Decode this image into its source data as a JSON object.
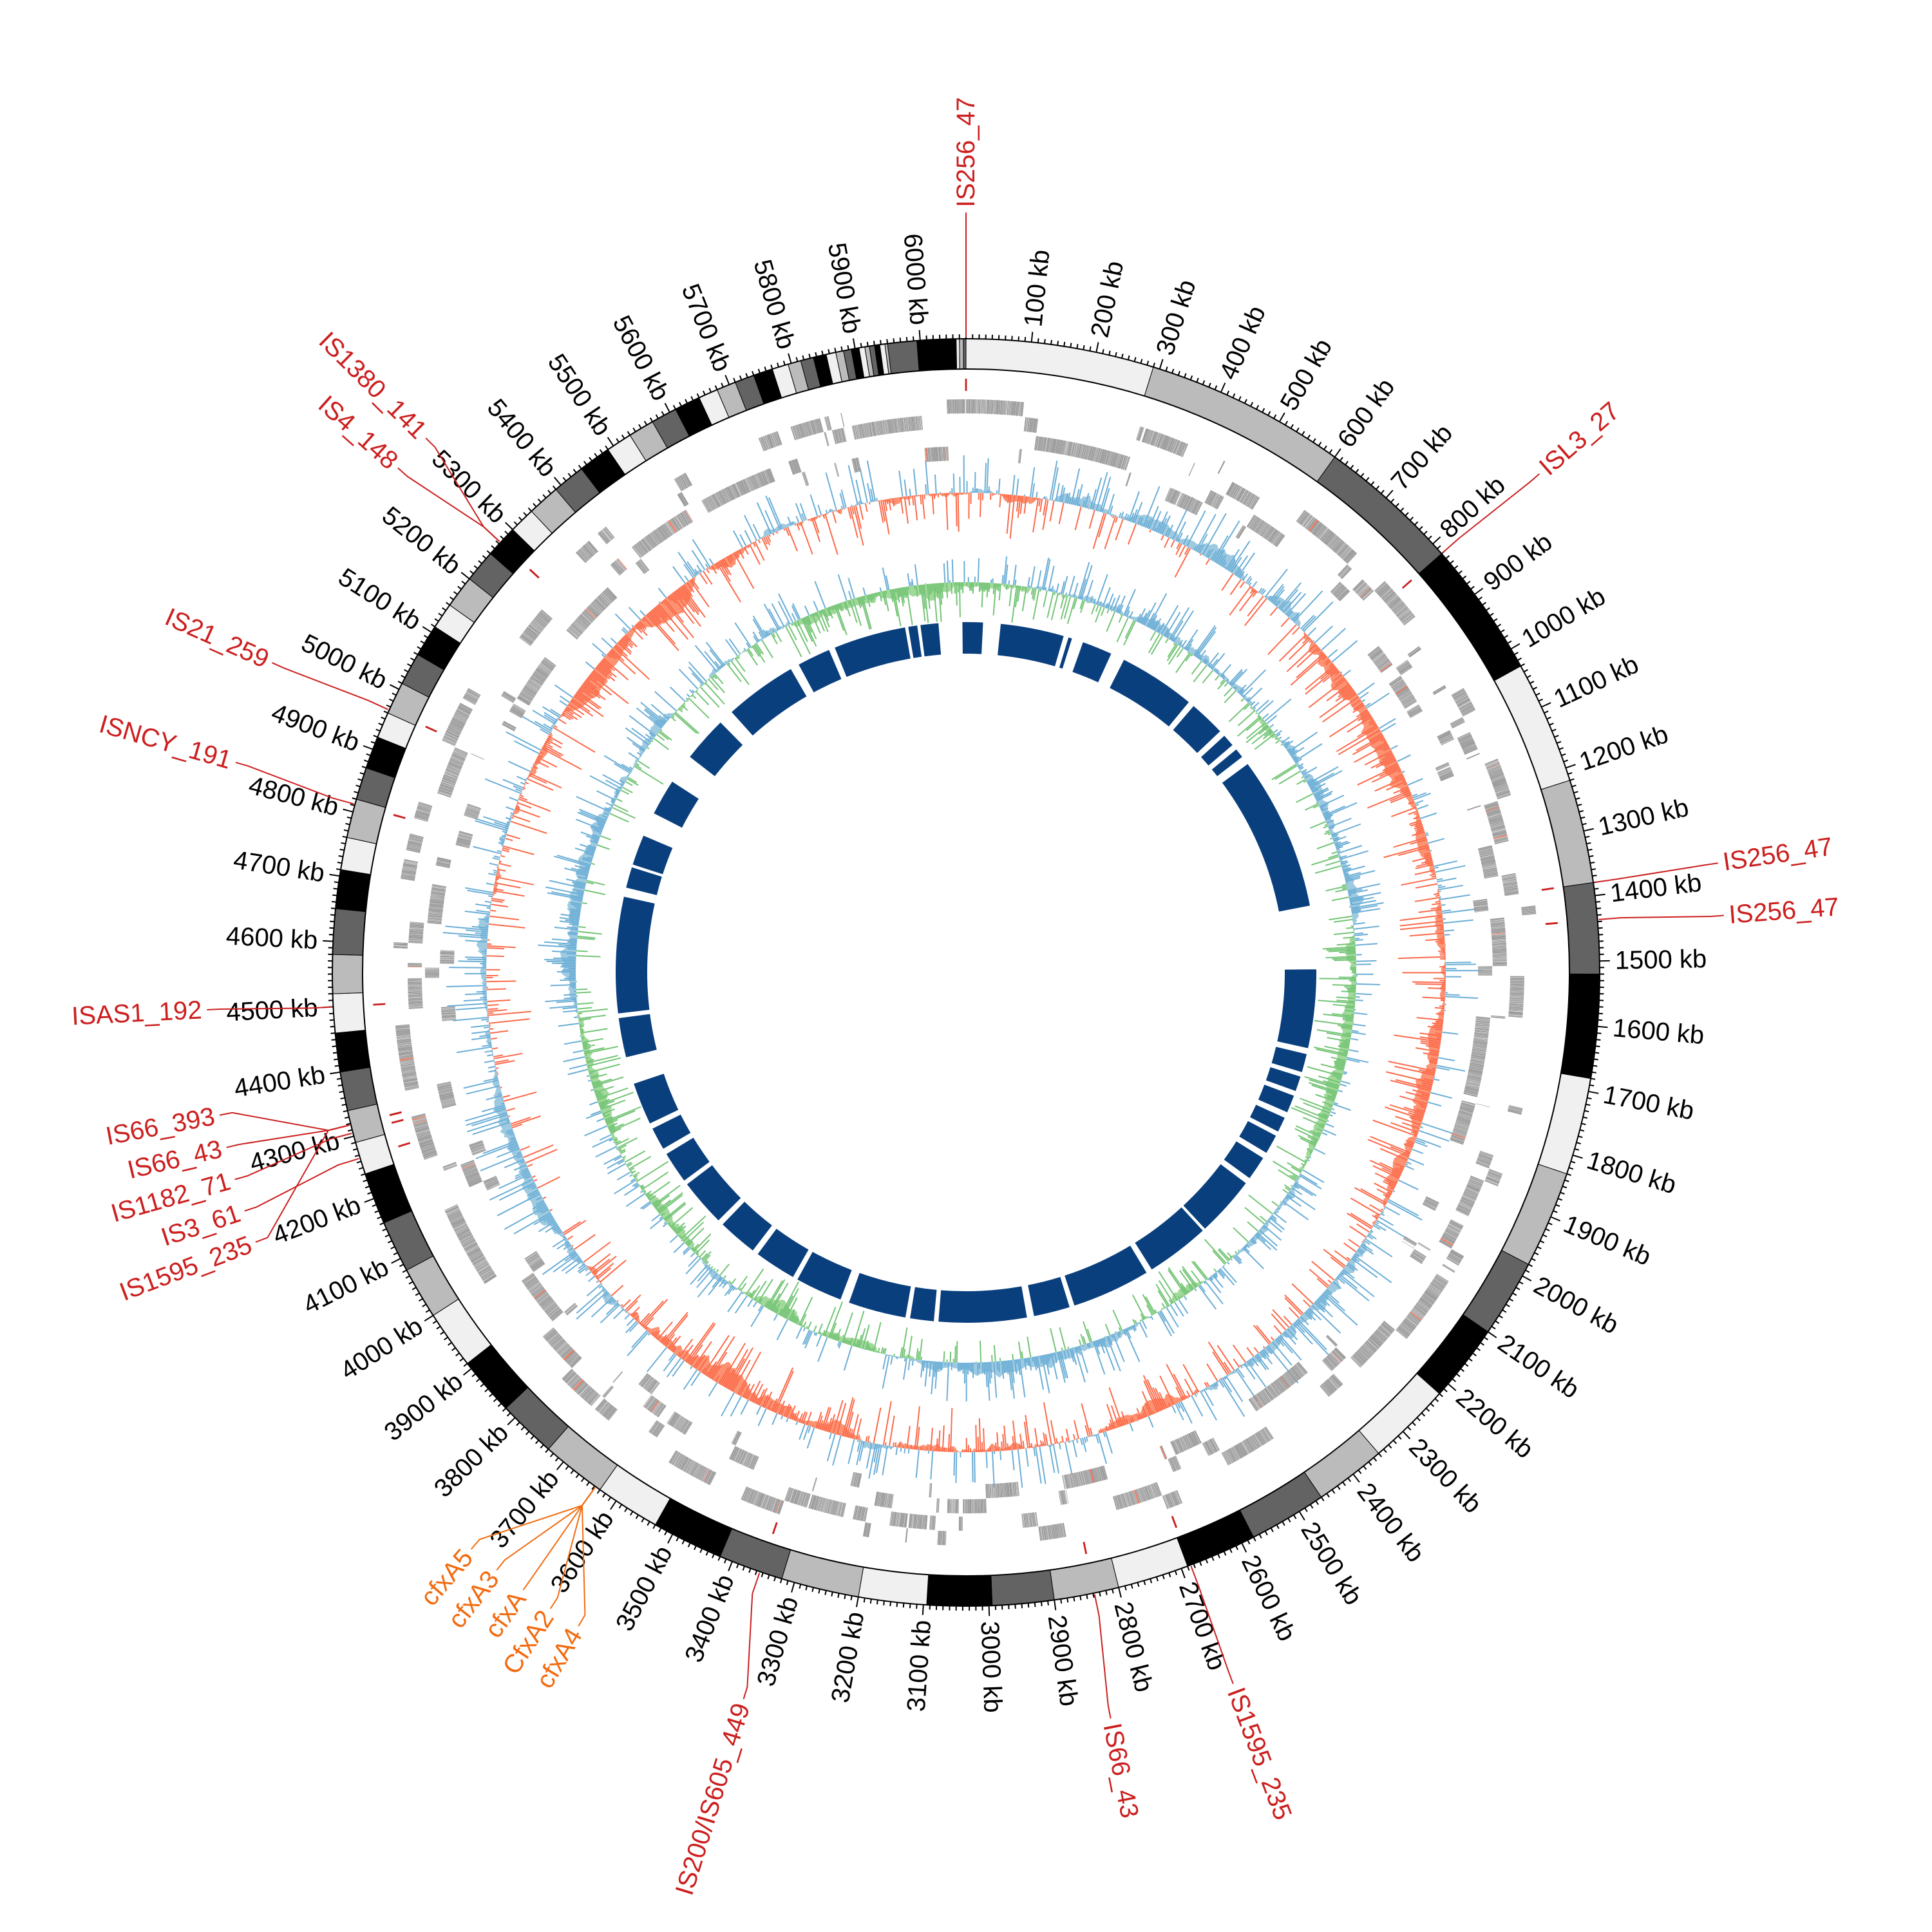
{
  "chart_data": {
    "type": "circular-genome",
    "genome_length_kb": 6070,
    "tick_labels": [
      "100 kb",
      "200 kb",
      "300 kb",
      "400 kb",
      "500 kb",
      "600 kb",
      "700 kb",
      "800 kb",
      "900 kb",
      "1000 kb",
      "1100 kb",
      "1200 kb",
      "1300 kb",
      "1400 kb",
      "1500 kb",
      "1600 kb",
      "1700 kb",
      "1800 kb",
      "1900 kb",
      "2000 kb",
      "2100 kb",
      "2200 kb",
      "2300 kb",
      "2400 kb",
      "2500 kb",
      "2600 kb",
      "2700 kb",
      "2800 kb",
      "2900 kb",
      "3000 kb",
      "3100 kb",
      "3200 kb",
      "3300 kb",
      "3400 kb",
      "3500 kb",
      "3600 kb",
      "3700 kb",
      "3800 kb",
      "3900 kb",
      "4000 kb",
      "4100 kb",
      "4200 kb",
      "4300 kb",
      "4400 kb",
      "4500 kb",
      "4600 kb",
      "4700 kb",
      "4800 kb",
      "4900 kb",
      "5000 kb",
      "5100 kb",
      "5200 kb",
      "5300 kb",
      "5400 kb",
      "5500 kb",
      "5600 kb",
      "5700 kb",
      "5800 kb",
      "5900 kb",
      "6000 kb"
    ],
    "ideogram_band_ends_kb": [
      290,
      600,
      820,
      1030,
      1220,
      1380,
      1520,
      1680,
      1830,
      1980,
      2100,
      2220,
      2350,
      2460,
      2580,
      2690,
      2800,
      2900,
      2995,
      3095,
      3200,
      3320,
      3420,
      3530,
      3630,
      3730,
      3820,
      3910,
      4000,
      4080,
      4160,
      4240,
      4290,
      4340,
      4400,
      4460,
      4520,
      4580,
      4650,
      4710,
      4760,
      4820,
      4870,
      4920,
      4960,
      5010,
      5060,
      5110,
      5150,
      5200,
      5250,
      5300,
      5340,
      5390,
      5440,
      5490,
      5530,
      5570,
      5610,
      5650,
      5680,
      5710,
      5740,
      5770,
      5795,
      5815,
      5835,
      5855,
      5870,
      5882,
      5894,
      5906,
      5915,
      5922,
      5930,
      5938,
      5946,
      5950,
      5995,
      6055,
      6060,
      6066,
      6070
    ],
    "ideogram_colors": [
      "#f0f0f0",
      "#bbbbbb",
      "#636363",
      "#000000"
    ],
    "annotations": [
      {
        "label": "IS256_47",
        "position_kb": 0,
        "kind": "IS"
      },
      {
        "label": "ISL3_27",
        "position_kb": 820,
        "kind": "IS"
      },
      {
        "label": "IS256_47",
        "position_kb": 1380,
        "kind": "IS"
      },
      {
        "label": "IS256_47",
        "position_kb": 1437,
        "kind": "IS"
      },
      {
        "label": "IS1595_235",
        "position_kb": 2685,
        "kind": "IS"
      },
      {
        "label": "IS66_43",
        "position_kb": 2838,
        "kind": "IS"
      },
      {
        "label": "IS200/IS605_449",
        "position_kb": 3355,
        "kind": "IS"
      },
      {
        "label": "cfxA5",
        "position_kb": 3638,
        "kind": "gene"
      },
      {
        "label": "cfxA3",
        "position_kb": 3638,
        "kind": "gene"
      },
      {
        "label": "cfxA",
        "position_kb": 3638,
        "kind": "gene"
      },
      {
        "label": "CfxA2",
        "position_kb": 3638,
        "kind": "gene"
      },
      {
        "label": "cfxA4",
        "position_kb": 3638,
        "kind": "gene"
      },
      {
        "label": "IS66_393",
        "position_kb": 4318,
        "kind": "IS"
      },
      {
        "label": "IS66_43",
        "position_kb": 4318,
        "kind": "IS"
      },
      {
        "label": "IS1182_71",
        "position_kb": 4305,
        "kind": "IS"
      },
      {
        "label": "IS3_61",
        "position_kb": 4265,
        "kind": "IS"
      },
      {
        "label": "IS1595_235",
        "position_kb": 4318,
        "kind": "IS"
      },
      {
        "label": "ISAS1_192",
        "position_kb": 4500,
        "kind": "IS"
      },
      {
        "label": "ISNCY_191",
        "position_kb": 4812,
        "kind": "IS"
      },
      {
        "label": "IS21_259",
        "position_kb": 4965,
        "kind": "IS"
      },
      {
        "label": "IS4_148",
        "position_kb": 5273,
        "kind": "IS"
      },
      {
        "label": "IS1380_141",
        "position_kb": 5273,
        "kind": "IS"
      }
    ],
    "inner_block_gaps_kb": [
      [
        47,
        96
      ],
      [
        273,
        287
      ],
      [
        297,
        329
      ],
      [
        413,
        452
      ],
      [
        666,
        683
      ],
      [
        784,
        801
      ],
      [
        835,
        851
      ],
      [
        877,
        902
      ],
      [
        1332,
        1509
      ],
      [
        1728,
        1745
      ],
      [
        1796,
        1809
      ],
      [
        1851,
        1865
      ],
      [
        1914,
        1931
      ],
      [
        1973,
        1986
      ],
      [
        2040,
        2057
      ],
      [
        2124,
        2141
      ],
      [
        2310,
        2318
      ],
      [
        2495,
        2512
      ],
      [
        2731,
        2745
      ],
      [
        2846,
        2866
      ],
      [
        3111,
        3124
      ],
      [
        3190,
        3203
      ],
      [
        3364,
        3389
      ],
      [
        3520,
        3534
      ],
      [
        3650,
        3667
      ],
      [
        3777,
        3793
      ],
      [
        3925,
        3938
      ],
      [
        4026,
        4043
      ],
      [
        4106,
        4122
      ],
      [
        4240,
        4316
      ],
      [
        4426,
        4439
      ],
      [
        4763,
        4789
      ],
      [
        4847,
        4855
      ],
      [
        4940,
        5008
      ],
      [
        5109,
        5193
      ],
      [
        5320,
        5362
      ],
      [
        5564,
        5589
      ],
      [
        5682,
        5699
      ],
      [
        5901,
        5910
      ],
      [
        5935,
        5944
      ],
      [
        5994,
        6060
      ]
    ],
    "colors": {
      "is_label": "#cc1f1f",
      "gene_label": "#f26b0f",
      "gene_feature": "#9a9a9a",
      "rna_feature": "#fb6a4a",
      "skew_positive": "#6baed6",
      "skew_positive_fill": "#9ecae1",
      "skew_negative": "#fb6a4a",
      "skew_negative_fill": "#fc9272",
      "gc_high": "#6baed6",
      "gc_high_fill": "#9ecae1",
      "gc_low": "#74c476",
      "gc_low_fill": "#a1d99b",
      "inner_block": "#0a3f7e"
    }
  }
}
